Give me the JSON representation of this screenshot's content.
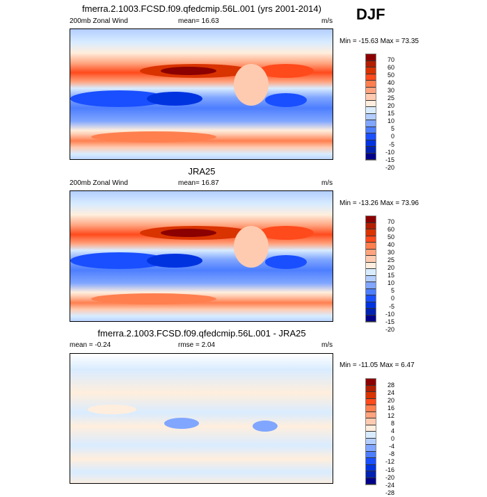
{
  "season": "DJF",
  "panels": [
    {
      "title": "fmerra.2.1003.FCSD.f09.qfedcmip.56L.001 (yrs 2001-2014)",
      "left": "200mb Zonal Wind",
      "center": "mean=  16.63",
      "right": "m/s",
      "minmax": "Min = -15.63 Max =  73.35",
      "colorbar": {
        "labels": [
          "70",
          "60",
          "50",
          "40",
          "30",
          "25",
          "20",
          "15",
          "10",
          "5",
          "0",
          "-5",
          "-10",
          "-15",
          "-20"
        ],
        "colors": [
          "#8b0000",
          "#b21e00",
          "#d93300",
          "#ff4a1c",
          "#ff7f4f",
          "#ffa47f",
          "#ffcbb0",
          "#ffeedd",
          "#d9ecff",
          "#b3ceff",
          "#80a6ff",
          "#4d7eff",
          "#1a4fff",
          "#0033e0",
          "#0022b0",
          "#00008b"
        ]
      }
    },
    {
      "title": "JRA25",
      "left": "200mb Zonal Wind",
      "center": "mean=  16.87",
      "right": "m/s",
      "minmax": "Min = -13.26 Max =  73.96",
      "colorbar": {
        "labels": [
          "70",
          "60",
          "50",
          "40",
          "30",
          "25",
          "20",
          "15",
          "10",
          "5",
          "0",
          "-5",
          "-10",
          "-15",
          "-20"
        ],
        "colors": [
          "#8b0000",
          "#b21e00",
          "#d93300",
          "#ff4a1c",
          "#ff7f4f",
          "#ffa47f",
          "#ffcbb0",
          "#ffeedd",
          "#d9ecff",
          "#b3ceff",
          "#80a6ff",
          "#4d7eff",
          "#1a4fff",
          "#0033e0",
          "#0022b0",
          "#00008b"
        ]
      }
    },
    {
      "title": "fmerra.2.1003.FCSD.f09.qfedcmip.56L.001 - JRA25",
      "left": "mean =  -0.24",
      "center": "rmse =   2.04",
      "right": "m/s",
      "minmax": "Min = -11.05 Max =   6.47",
      "colorbar": {
        "labels": [
          "28",
          "24",
          "20",
          "16",
          "12",
          "8",
          "4",
          "0",
          "-4",
          "-8",
          "-12",
          "-16",
          "-20",
          "-24",
          "-28"
        ],
        "colors": [
          "#8b0000",
          "#b21e00",
          "#d93300",
          "#ff4a1c",
          "#ff7f4f",
          "#ffa47f",
          "#ffcbb0",
          "#ffeedd",
          "#d9ecff",
          "#b3ceff",
          "#80a6ff",
          "#4d7eff",
          "#1a4fff",
          "#0033e0",
          "#0022b0",
          "#00008b"
        ]
      }
    }
  ]
}
